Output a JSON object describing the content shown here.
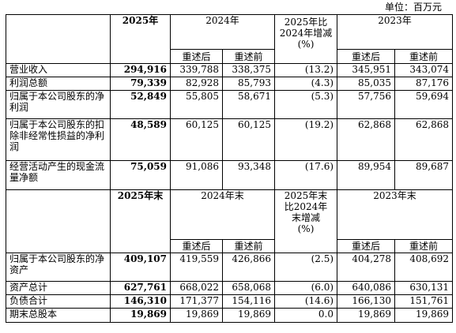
{
  "unit_label": "单位：百万元",
  "headers": {
    "current_year": "2025年",
    "prior_year": "2024年",
    "change_year": "2025年比2024年增减(%)",
    "two_years_prior": "2023年",
    "restated": "重述后",
    "before_restatement": "重述前",
    "current_year_end": "2025年末",
    "prior_year_end": "2024年末",
    "change_year_end_line1": "2025年末",
    "change_year_end_line2": "比2024年",
    "change_year_end_line3": "末增减",
    "change_year_end_line4": "(%)",
    "two_years_prior_end": "2023年末"
  },
  "income_rows": [
    {
      "label": "营业收入",
      "y2025": "294,916",
      "y2024_restated": "339,788",
      "y2024_before": "338,375",
      "change": "(13.2)",
      "y2023_restated": "345,951",
      "y2023_before": "343,074"
    },
    {
      "label": "利润总额",
      "y2025": "79,339",
      "y2024_restated": "82,928",
      "y2024_before": "85,793",
      "change": "(4.3)",
      "y2023_restated": "85,035",
      "y2023_before": "87,176"
    },
    {
      "label": "归属于本公司股东的净利润",
      "y2025": "52,849",
      "y2024_restated": "55,805",
      "y2024_before": "58,671",
      "change": "(5.3)",
      "y2023_restated": "57,756",
      "y2023_before": "59,694"
    },
    {
      "label": "归属于本公司股东的扣除非经常性损益的净利润",
      "y2025": "48,589",
      "y2024_restated": "60,125",
      "y2024_before": "60,125",
      "change": "(19.2)",
      "y2023_restated": "62,868",
      "y2023_before": "62,868"
    },
    {
      "label": "经营活动产生的现金流量净额",
      "y2025": "75,059",
      "y2024_restated": "91,086",
      "y2024_before": "93,348",
      "change": "(17.6)",
      "y2023_restated": "89,954",
      "y2023_before": "89,687"
    }
  ],
  "balance_rows": [
    {
      "label": "归属于本公司股东的净资产",
      "y2025": "409,107",
      "y2024_restated": "419,559",
      "y2024_before": "426,866",
      "change": "(2.5)",
      "y2023_restated": "404,278",
      "y2023_before": "408,692"
    },
    {
      "label": "资产总计",
      "y2025": "627,761",
      "y2024_restated": "668,022",
      "y2024_before": "658,068",
      "change": "(6.0)",
      "y2023_restated": "640,086",
      "y2023_before": "630,131"
    },
    {
      "label": "负债合计",
      "y2025": "146,310",
      "y2024_restated": "171,377",
      "y2024_before": "154,116",
      "change": "(14.6)",
      "y2023_restated": "166,130",
      "y2023_before": "151,761"
    },
    {
      "label": "期末总股本",
      "y2025": "19,869",
      "y2024_restated": "19,869",
      "y2024_before": "19,869",
      "change": "0.0",
      "y2023_restated": "19,869",
      "y2023_before": "19,869"
    }
  ]
}
